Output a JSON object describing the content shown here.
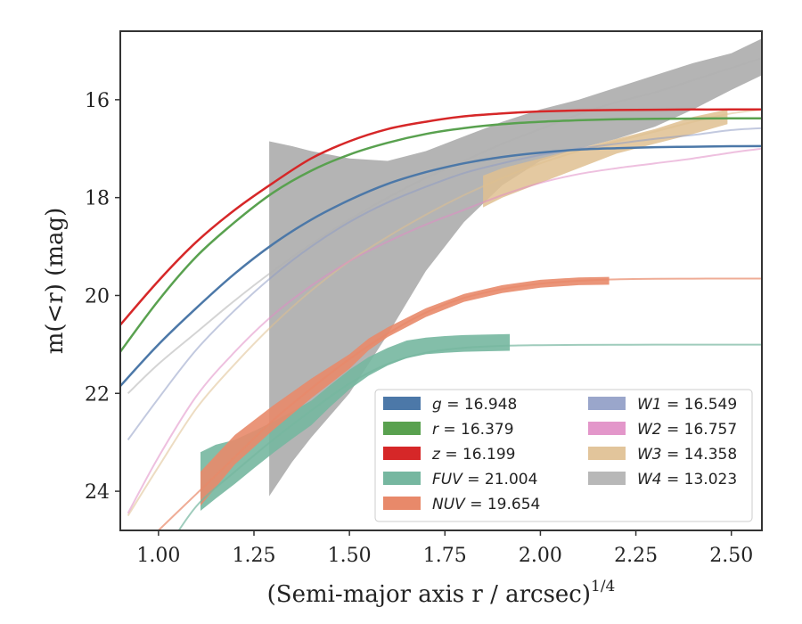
{
  "chart_data": {
    "type": "line",
    "xlabel": "(Semi-major axis r / arcsec)",
    "xlabel_exponent": "1/4",
    "ylabel": "m(<r) (mag)",
    "xlim": [
      0.9,
      2.58
    ],
    "ylim": [
      24.8,
      14.6
    ],
    "y_inverted": true,
    "x_ticks": [
      1.0,
      1.25,
      1.5,
      1.75,
      2.0,
      2.25,
      2.5
    ],
    "x_tick_labels": [
      "1.00",
      "1.25",
      "1.50",
      "1.75",
      "2.00",
      "2.25",
      "2.50"
    ],
    "y_ticks": [
      16,
      18,
      20,
      22,
      24
    ],
    "y_tick_labels": [
      "16",
      "18",
      "20",
      "22",
      "24"
    ],
    "grid": false,
    "legend_position": "lower-right",
    "legend_columns": 2,
    "series": [
      {
        "name": "g",
        "var": "g",
        "total": "16.948",
        "color": "#4c78a8",
        "kind": "model",
        "x": [
          0.9,
          1.0,
          1.1,
          1.2,
          1.3,
          1.4,
          1.5,
          1.6,
          1.7,
          1.8,
          1.9,
          2.0,
          2.1,
          2.2,
          2.3,
          2.4,
          2.5,
          2.58
        ],
        "y": [
          21.85,
          21.0,
          20.25,
          19.55,
          18.95,
          18.45,
          18.05,
          17.72,
          17.48,
          17.3,
          17.17,
          17.08,
          17.02,
          16.99,
          16.97,
          16.96,
          16.95,
          16.948
        ]
      },
      {
        "name": "r",
        "var": "r",
        "total": "16.379",
        "color": "#59a14f",
        "kind": "model",
        "x": [
          0.9,
          1.0,
          1.1,
          1.2,
          1.3,
          1.4,
          1.5,
          1.6,
          1.7,
          1.8,
          1.9,
          2.0,
          2.1,
          2.2,
          2.3,
          2.4,
          2.5,
          2.58
        ],
        "y": [
          21.15,
          20.1,
          19.2,
          18.5,
          17.9,
          17.45,
          17.12,
          16.88,
          16.7,
          16.58,
          16.5,
          16.45,
          16.42,
          16.4,
          16.39,
          16.385,
          16.38,
          16.379
        ]
      },
      {
        "name": "z",
        "var": "z",
        "total": "16.199",
        "color": "#d62728",
        "kind": "model",
        "x": [
          0.9,
          1.0,
          1.1,
          1.2,
          1.3,
          1.4,
          1.5,
          1.6,
          1.7,
          1.8,
          1.9,
          2.0,
          2.1,
          2.2,
          2.3,
          2.4,
          2.5,
          2.58
        ],
        "y": [
          20.6,
          19.7,
          18.9,
          18.25,
          17.7,
          17.2,
          16.85,
          16.6,
          16.45,
          16.34,
          16.28,
          16.24,
          16.22,
          16.21,
          16.205,
          16.2,
          16.2,
          16.199
        ]
      },
      {
        "name": "FUV",
        "var": "FUV",
        "total": "21.004",
        "color": "#76b7a0",
        "kind": "band",
        "x": [
          1.11,
          1.15,
          1.2,
          1.25,
          1.3,
          1.35,
          1.4,
          1.45,
          1.5,
          1.55,
          1.6,
          1.65,
          1.7,
          1.75,
          1.8,
          1.85,
          1.92
        ],
        "y": [
          23.8,
          23.6,
          23.4,
          23.15,
          22.9,
          22.65,
          22.4,
          22.05,
          21.72,
          21.45,
          21.25,
          21.1,
          21.03,
          21.0,
          20.98,
          20.97,
          20.96
        ],
        "half_width": [
          0.6,
          0.55,
          0.45,
          0.38,
          0.32,
          0.28,
          0.25,
          0.22,
          0.2,
          0.19,
          0.18,
          0.18,
          0.17,
          0.17,
          0.17,
          0.17,
          0.17
        ],
        "model_x": [
          1.02,
          1.1,
          1.2,
          1.3,
          1.4,
          1.5,
          1.6,
          1.7,
          1.8,
          1.9,
          2.0,
          2.1,
          2.2,
          2.3,
          2.4,
          2.5,
          2.58
        ],
        "model_y": [
          25.2,
          24.3,
          23.6,
          22.95,
          22.35,
          21.8,
          21.4,
          21.17,
          21.07,
          21.03,
          21.015,
          21.01,
          21.006,
          21.005,
          21.004,
          21.004,
          21.004
        ]
      },
      {
        "name": "NUV",
        "var": "NUV",
        "total": "19.654",
        "color": "#e8896a",
        "kind": "band",
        "x": [
          1.11,
          1.2,
          1.3,
          1.4,
          1.5,
          1.55,
          1.6,
          1.7,
          1.8,
          1.9,
          2.0,
          2.1,
          2.18
        ],
        "y": [
          23.95,
          23.15,
          22.5,
          21.9,
          21.35,
          21.0,
          20.75,
          20.35,
          20.05,
          19.87,
          19.76,
          19.71,
          19.7
        ],
        "half_width": [
          0.35,
          0.3,
          0.25,
          0.2,
          0.15,
          0.12,
          0.1,
          0.09,
          0.08,
          0.08,
          0.08,
          0.08,
          0.08
        ],
        "model_x": [
          0.95,
          1.0,
          1.1,
          1.2,
          1.3,
          1.4,
          1.5,
          1.6,
          1.7,
          1.8,
          1.9,
          2.0,
          2.1,
          2.2,
          2.3,
          2.4,
          2.5,
          2.58
        ],
        "model_y": [
          25.2,
          24.8,
          24.05,
          23.3,
          22.55,
          21.9,
          21.3,
          20.78,
          20.35,
          20.05,
          19.87,
          19.76,
          19.7,
          19.67,
          19.66,
          19.656,
          19.655,
          19.654
        ]
      },
      {
        "name": "W1",
        "var": "W1",
        "total": "16.549",
        "color": "#8f9cc5",
        "kind": "model",
        "x": [
          0.92,
          1.0,
          1.1,
          1.2,
          1.3,
          1.4,
          1.5,
          1.6,
          1.7,
          1.8,
          1.9,
          2.0,
          2.1,
          2.2,
          2.3,
          2.4,
          2.5,
          2.58
        ],
        "y": [
          22.95,
          22.1,
          21.1,
          20.3,
          19.6,
          19.0,
          18.5,
          18.1,
          17.78,
          17.5,
          17.3,
          17.13,
          17.0,
          16.9,
          16.8,
          16.72,
          16.62,
          16.58
        ]
      },
      {
        "name": "W2",
        "var": "W2",
        "total": "16.757",
        "color": "#e08cc4",
        "kind": "model",
        "x": [
          0.92,
          1.0,
          1.1,
          1.2,
          1.3,
          1.4,
          1.5,
          1.6,
          1.7,
          1.8,
          1.9,
          2.0,
          2.1,
          2.2,
          2.3,
          2.4,
          2.5,
          2.58
        ],
        "y": [
          24.45,
          23.3,
          22.05,
          21.15,
          20.4,
          19.8,
          19.3,
          18.9,
          18.55,
          18.25,
          17.95,
          17.7,
          17.52,
          17.4,
          17.3,
          17.2,
          17.08,
          17.0
        ]
      },
      {
        "name": "W3",
        "var": "W3",
        "total": "14.358",
        "color": "#dfbf90",
        "kind": "model",
        "x": [
          0.92,
          1.0,
          1.1,
          1.2,
          1.3,
          1.4,
          1.5,
          1.6,
          1.7,
          1.8,
          1.9,
          2.0,
          2.1,
          2.2,
          2.3,
          2.4,
          2.5,
          2.58
        ],
        "y": [
          24.5,
          23.5,
          22.3,
          21.4,
          20.6,
          19.9,
          19.3,
          18.8,
          18.35,
          17.95,
          17.6,
          17.3,
          17.05,
          16.85,
          16.65,
          16.45,
          16.28,
          16.2
        ],
        "band_x": [
          1.85,
          1.9,
          2.0,
          2.1,
          2.2,
          2.3,
          2.4,
          2.49
        ],
        "band_upper": [
          18.2,
          18.0,
          17.7,
          17.4,
          17.1,
          16.9,
          16.7,
          16.5
        ],
        "band_lower": [
          17.55,
          17.4,
          17.2,
          17.0,
          16.8,
          16.6,
          16.35,
          16.2
        ]
      },
      {
        "name": "W4",
        "var": "W4",
        "total": "13.023",
        "color": "#b0b0b0",
        "kind": "model",
        "x": [
          0.92,
          1.0,
          1.1,
          1.2,
          1.3,
          1.4,
          1.5,
          1.6,
          1.7,
          1.8,
          1.9,
          2.0,
          2.1,
          2.2,
          2.3,
          2.4,
          2.5,
          2.58
        ],
        "y": [
          22.0,
          21.4,
          20.75,
          20.1,
          19.5,
          18.95,
          18.45,
          18.0,
          17.6,
          17.25,
          16.9,
          16.6,
          16.3,
          16.05,
          15.85,
          15.6,
          15.35,
          15.15
        ],
        "band_x": [
          1.29,
          1.35,
          1.4,
          1.5,
          1.6,
          1.7,
          1.8,
          1.9,
          2.0,
          2.1,
          2.2,
          2.3,
          2.4,
          2.5,
          2.58
        ],
        "band_upper": [
          16.85,
          16.95,
          17.05,
          17.2,
          17.25,
          17.05,
          16.75,
          16.45,
          16.2,
          16.0,
          15.75,
          15.5,
          15.25,
          15.05,
          14.75
        ],
        "band_lower": [
          24.1,
          23.4,
          22.9,
          22.0,
          20.8,
          19.5,
          18.5,
          17.75,
          17.25,
          17.0,
          16.8,
          16.55,
          16.2,
          15.8,
          15.5
        ]
      }
    ]
  }
}
